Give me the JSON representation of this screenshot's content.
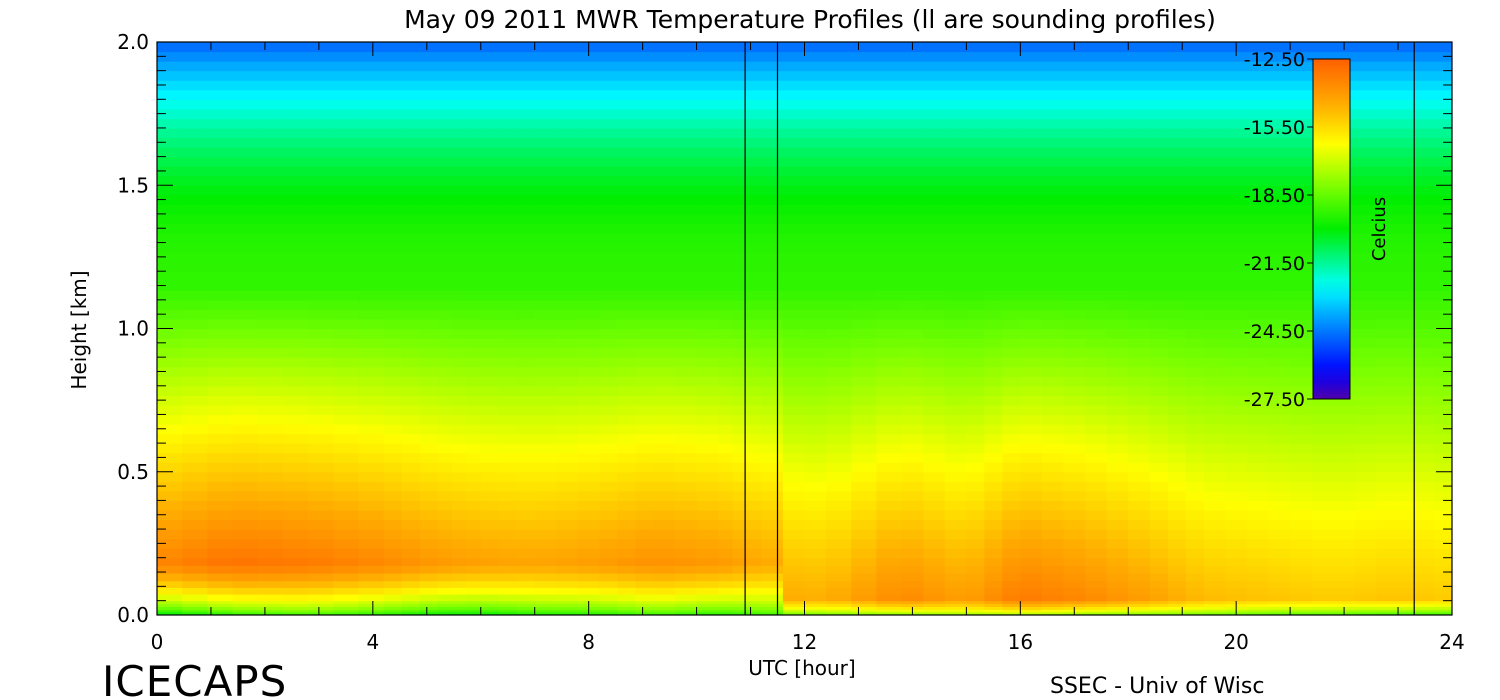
{
  "chart_data": {
    "type": "heatmap",
    "title": "May 09 2011 MWR Temperature Profiles (ll are sounding profiles)",
    "xlabel": "UTC [hour]",
    "ylabel": "Height [km]",
    "xlim": [
      0,
      24
    ],
    "ylim": [
      0,
      2.0
    ],
    "x_ticks": [
      "0",
      "4",
      "8",
      "12",
      "16",
      "20",
      "24"
    ],
    "y_ticks": [
      "0.0",
      "0.5",
      "1.0",
      "1.5",
      "2.0"
    ],
    "sounding_times_utc": [
      10.9,
      11.5,
      23.3
    ],
    "colorbar": {
      "label": "Celcius",
      "ticks": [
        "-12.50",
        "-15.50",
        "-18.50",
        "-21.50",
        "-24.50",
        "-27.50"
      ],
      "range": [
        -27.5,
        -12.5
      ],
      "placement": "top-right inside plot"
    },
    "profile_times_utc": [
      0,
      1.4,
      2.8,
      4.2,
      5.2,
      6.0,
      7.0,
      8.2,
      9.2,
      10.4,
      11.2,
      12.4,
      13.8,
      15.0,
      16.0,
      17.2,
      18.4,
      19.4,
      20.6,
      21.8,
      23.0,
      24.0
    ],
    "profile_heights_km": [
      0.0,
      0.02,
      0.05,
      0.12,
      0.2,
      0.3,
      0.4,
      0.5,
      0.6,
      0.7,
      0.8,
      0.9,
      1.0,
      1.1,
      1.2,
      1.3,
      1.4,
      1.5,
      1.6,
      1.7,
      1.8,
      1.9,
      2.0
    ],
    "surface_temps_c": [
      -21.5,
      -20.5,
      -20.0,
      -20.5,
      -21.0,
      -21.0,
      -20.5,
      -20.5,
      -20.0,
      -20.5,
      -20.0,
      -19.5,
      -19.5,
      -19.0,
      -19.0,
      -19.5,
      -19.5,
      -19.5,
      -20.0,
      -20.0,
      -20.5,
      -20.5
    ],
    "low_level_max_temps_c": [
      -13.5,
      -13.0,
      -13.2,
      -13.6,
      -14.0,
      -14.2,
      -14.3,
      -14.1,
      -13.8,
      -14.0,
      -14.4,
      -14.6,
      -13.6,
      -14.2,
      -13.2,
      -13.6,
      -14.2,
      -14.8,
      -15.0,
      -15.2,
      -15.0,
      -15.2
    ]
  },
  "footer": {
    "left": "ICECAPS",
    "right": "SSEC - Univ of Wisc"
  },
  "colors": {
    "axis": "#000000",
    "background": "#ffffff"
  }
}
